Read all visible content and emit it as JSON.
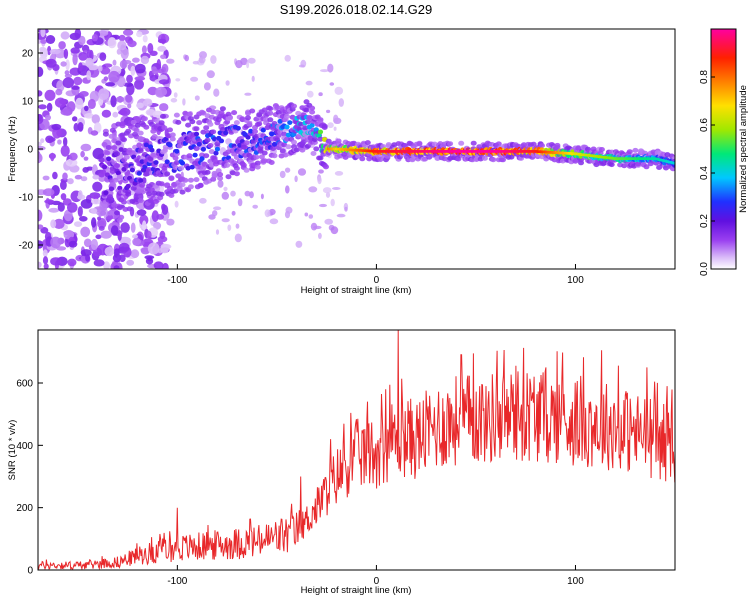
{
  "figure_title": "S199.2026.018.02.14.G29",
  "chart_data": [
    {
      "type": "heatmap",
      "title": "S199.2026.018.02.14.G29",
      "xlabel": "Height of straight line (km)",
      "ylabel": "Frequency (Hz)",
      "xlim": [
        -170,
        150
      ],
      "ylim": [
        -25,
        25
      ],
      "x_ticks": [
        -100,
        0,
        100
      ],
      "y_ticks": [
        -20,
        -10,
        0,
        10,
        20
      ],
      "x_tick_labels": [
        "-100",
        "0",
        "100"
      ],
      "y_tick_labels": [
        "-20",
        "-10",
        "0",
        "10",
        "20"
      ],
      "colorbar": {
        "label": "Normalized spectral amplitude",
        "range": [
          0.0,
          1.0
        ],
        "ticks": [
          0.0,
          0.2,
          0.4,
          0.6,
          0.8
        ],
        "tick_labels": [
          "0.0",
          "0.2",
          "0.4",
          "0.6",
          "0.8"
        ],
        "colors": [
          "#ffffff",
          "#d8b8f8",
          "#9a40f0",
          "#6010e0",
          "#2030ff",
          "#00c8ff",
          "#00e878",
          "#a0e800",
          "#ffe000",
          "#ff8000",
          "#ff2000",
          "#ff00a0"
        ]
      },
      "ridge": {
        "x": [
          -135,
          -120,
          -100,
          -80,
          -60,
          -45,
          -35,
          -30,
          -25,
          -20,
          0,
          20,
          40,
          60,
          80,
          100,
          110,
          120,
          130,
          140,
          150
        ],
        "frequency": [
          -6,
          -3,
          -1,
          1,
          2,
          4,
          5,
          3,
          0,
          0,
          -0.5,
          -0.5,
          -0.5,
          -0.5,
          -0.5,
          -1,
          -1.5,
          -2,
          -2,
          -2,
          -3
        ],
        "amplitude": [
          0.2,
          0.25,
          0.28,
          0.3,
          0.3,
          0.35,
          0.45,
          0.45,
          0.7,
          0.6,
          0.8,
          0.85,
          0.9,
          0.9,
          0.8,
          0.55,
          0.5,
          0.45,
          0.4,
          0.35,
          0.3
        ]
      }
    },
    {
      "type": "line",
      "xlabel": "Height of straight line (km)",
      "ylabel": "SNR (10 * v/v)",
      "xlim": [
        -170,
        150
      ],
      "ylim": [
        0,
        770
      ],
      "x_ticks": [
        -100,
        0,
        100
      ],
      "y_ticks": [
        0,
        200,
        400,
        600
      ],
      "x_tick_labels": [
        "-100",
        "0",
        "100"
      ],
      "y_tick_labels": [
        "0",
        "200",
        "400",
        "600"
      ],
      "series": [
        {
          "name": "SNR",
          "color": "#e8282a",
          "x": [
            -170,
            -150,
            -130,
            -120,
            -110,
            -100,
            -90,
            -80,
            -70,
            -60,
            -50,
            -40,
            -30,
            -20,
            -10,
            0,
            10,
            20,
            30,
            40,
            60,
            80,
            90,
            100,
            120,
            130,
            140,
            150
          ],
          "y": [
            15,
            15,
            25,
            45,
            60,
            70,
            75,
            80,
            85,
            90,
            105,
            120,
            200,
            300,
            370,
            380,
            430,
            420,
            460,
            480,
            490,
            500,
            490,
            480,
            460,
            440,
            420,
            400
          ],
          "peaks": [
            {
              "x": -100,
              "y": 200
            },
            {
              "x": -38,
              "y": 300
            },
            {
              "x": -23,
              "y": 420
            },
            {
              "x": 11,
              "y": 770
            },
            {
              "x": 55,
              "y": 590
            },
            {
              "x": 70,
              "y": 655
            },
            {
              "x": 85,
              "y": 650
            },
            {
              "x": 113,
              "y": 705
            },
            {
              "x": 136,
              "y": 650
            },
            {
              "x": 146,
              "y": 590
            }
          ]
        }
      ]
    }
  ]
}
